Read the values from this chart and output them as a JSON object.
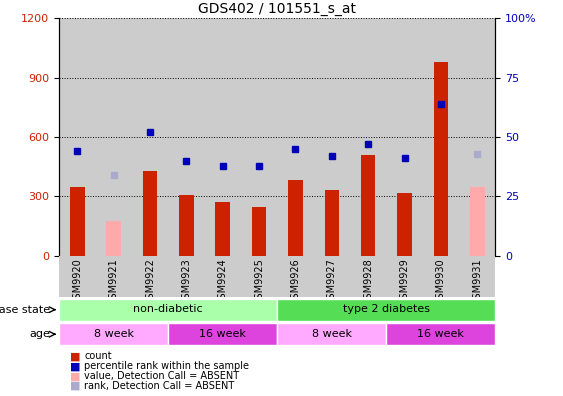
{
  "title": "GDS402 / 101551_s_at",
  "samples": [
    "GSM9920",
    "GSM9921",
    "GSM9922",
    "GSM9923",
    "GSM9924",
    "GSM9925",
    "GSM9926",
    "GSM9927",
    "GSM9928",
    "GSM9929",
    "GSM9930",
    "GSM9931"
  ],
  "count_values": [
    350,
    null,
    430,
    305,
    270,
    245,
    385,
    330,
    510,
    315,
    980,
    null
  ],
  "count_absent": [
    null,
    175,
    null,
    null,
    null,
    null,
    null,
    null,
    null,
    null,
    null,
    350
  ],
  "rank_values": [
    44,
    null,
    52,
    40,
    38,
    38,
    45,
    42,
    47,
    41,
    64,
    null
  ],
  "rank_absent": [
    null,
    34,
    null,
    null,
    null,
    null,
    null,
    null,
    null,
    null,
    null,
    43
  ],
  "bar_color": "#cc2200",
  "bar_absent_color": "#ffaaaa",
  "dot_color": "#0000bb",
  "dot_absent_color": "#aaaacc",
  "ylim_left": [
    0,
    1200
  ],
  "ylim_right": [
    0,
    100
  ],
  "yticks_left": [
    0,
    300,
    600,
    900,
    1200
  ],
  "yticks_right": [
    0,
    25,
    50,
    75,
    100
  ],
  "disease_state_groups": [
    {
      "label": "non-diabetic",
      "start": 0,
      "end": 6,
      "color": "#aaffaa"
    },
    {
      "label": "type 2 diabetes",
      "start": 6,
      "end": 12,
      "color": "#55dd55"
    }
  ],
  "age_groups": [
    {
      "label": "8 week",
      "start": 0,
      "end": 3,
      "color": "#ffaaff"
    },
    {
      "label": "16 week",
      "start": 3,
      "end": 6,
      "color": "#dd44dd"
    },
    {
      "label": "8 week",
      "start": 6,
      "end": 9,
      "color": "#ffaaff"
    },
    {
      "label": "16 week",
      "start": 9,
      "end": 12,
      "color": "#dd44dd"
    }
  ],
  "tick_area_color": "#cccccc",
  "legend_items": [
    {
      "color": "#cc2200",
      "label": "count"
    },
    {
      "color": "#0000bb",
      "label": "percentile rank within the sample"
    },
    {
      "color": "#ffaaaa",
      "label": "value, Detection Call = ABSENT"
    },
    {
      "color": "#aaaacc",
      "label": "rank, Detection Call = ABSENT"
    }
  ]
}
